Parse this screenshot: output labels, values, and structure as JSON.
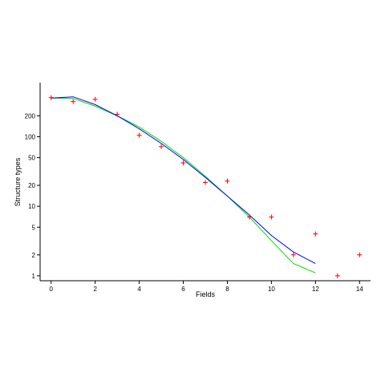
{
  "chart_data": {
    "type": "scatter",
    "title": "",
    "xlabel": "Fields",
    "ylabel": "Structure types",
    "y_scale": "log",
    "xlim": [
      -0.5,
      14.5
    ],
    "ylim": [
      0.85,
      600
    ],
    "x_ticks": [
      0,
      2,
      4,
      6,
      8,
      10,
      12,
      14
    ],
    "y_ticks": [
      1,
      2,
      5,
      10,
      20,
      50,
      100,
      200
    ],
    "grid": false,
    "legend": "none",
    "series": [
      {
        "kind": "points",
        "marker": "+",
        "color": "#ff0000",
        "x": [
          0,
          1,
          2,
          3,
          4,
          5,
          6,
          7,
          8,
          9,
          10,
          11,
          12,
          13,
          14
        ],
        "y": [
          365,
          320,
          345,
          210,
          105,
          72,
          42,
          22,
          23,
          7,
          7,
          2,
          4,
          1,
          2
        ]
      },
      {
        "kind": "line",
        "color": "#00dd00",
        "x": [
          0,
          1,
          2,
          3,
          4,
          5,
          6,
          7,
          8,
          9,
          10,
          11,
          12
        ],
        "y": [
          360,
          355,
          275,
          200,
          138,
          86,
          50,
          27,
          14,
          7,
          3.2,
          1.5,
          1.1
        ]
      },
      {
        "kind": "line",
        "color": "#0000ff",
        "x": [
          0,
          1,
          2,
          3,
          4,
          5,
          6,
          7,
          8,
          9,
          10,
          11,
          12
        ],
        "y": [
          360,
          375,
          290,
          200,
          130,
          80,
          47,
          26,
          14,
          7.5,
          3.8,
          2.2,
          1.5
        ]
      }
    ]
  }
}
